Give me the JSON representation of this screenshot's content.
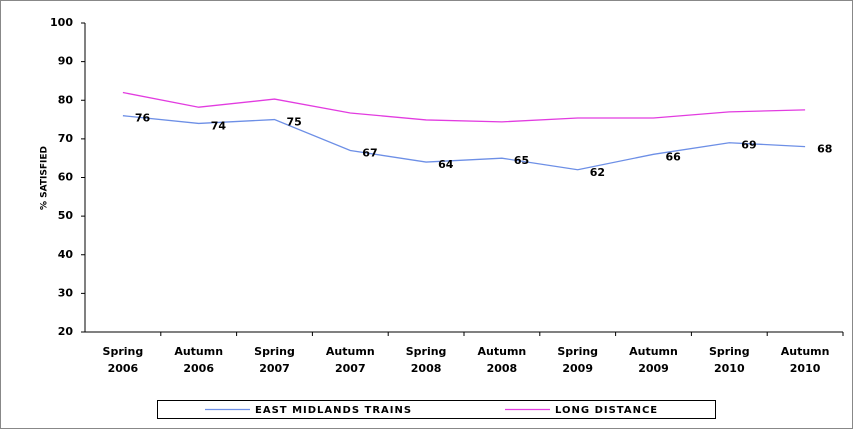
{
  "chart_data": {
    "type": "line",
    "y_label": "% SATISFIED",
    "categories": [
      [
        "Spring",
        "2006"
      ],
      [
        "Autumn",
        "2006"
      ],
      [
        "Spring",
        "2007"
      ],
      [
        "Autumn",
        "2007"
      ],
      [
        "Spring",
        "2008"
      ],
      [
        "Autumn",
        "2008"
      ],
      [
        "Spring",
        "2009"
      ],
      [
        "Autumn",
        "2009"
      ],
      [
        "Spring",
        "2010"
      ],
      [
        "Autumn",
        "2010"
      ]
    ],
    "series": [
      {
        "name": "EAST MIDLANDS TRAINS",
        "color": "#6d8fe6",
        "values": [
          76,
          74,
          75,
          67,
          64,
          65,
          62,
          66,
          69,
          68
        ],
        "data_labels": true
      },
      {
        "name": "LONG DISTANCE",
        "color": "#e23ce0",
        "values": [
          82,
          78.2,
          80.3,
          76.7,
          74.9,
          74.4,
          75.4,
          75.4,
          77,
          77.5
        ],
        "data_labels": false
      }
    ],
    "ylim": [
      20,
      100
    ],
    "yticks": [
      20,
      30,
      40,
      50,
      60,
      70,
      80,
      90,
      100
    ]
  }
}
